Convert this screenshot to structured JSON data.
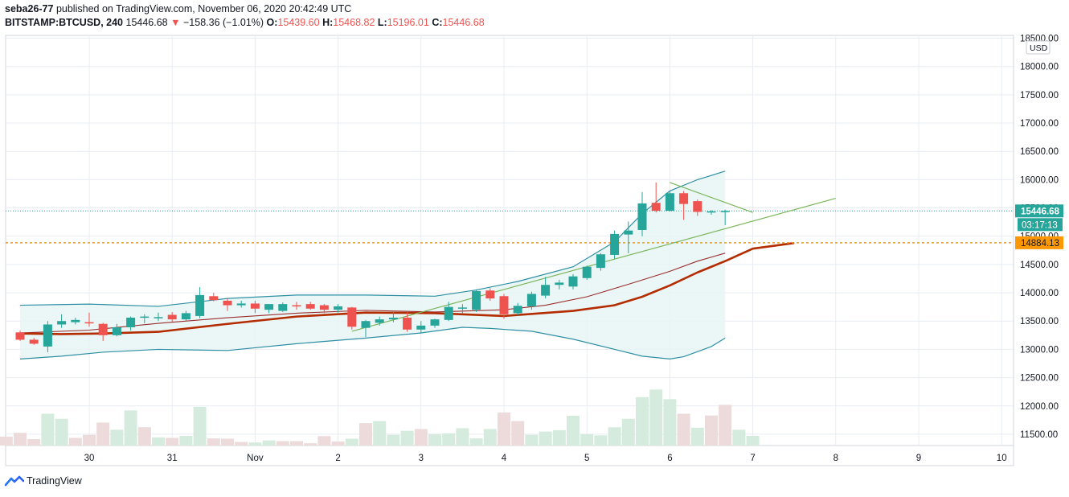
{
  "header": {
    "author": "seba26-77",
    "published": "published on TradingView.com, November 06, 2020 20:42:49 UTC",
    "symbol": "BITSTAMP:BTCUSD, 240",
    "last": "15446.68",
    "change_arrow": "▼",
    "change": "−158.36 (−1.01%)",
    "open_label": "O:",
    "open": "15439.60",
    "high_label": "H:",
    "high": "15468.82",
    "low_label": "L:",
    "low": "15196.01",
    "close_label": "C:",
    "close": "15446.68"
  },
  "footer": {
    "brand": "TradingView",
    "logo_icon": "tradingview-logo-icon"
  },
  "chart_data": {
    "type": "candlestick",
    "currency": "USD",
    "ylim": [
      11300,
      18550
    ],
    "yticks": [
      18500,
      18000,
      17500,
      17000,
      16500,
      16000,
      15500,
      15000,
      14500,
      14000,
      13500,
      13000,
      12500,
      12000,
      11500
    ],
    "ytick_labels": [
      "18500.00",
      "18000.00",
      "17500.00",
      "17000.00",
      "16500.00",
      "16000.00",
      "15500.00",
      "15000.00",
      "14500.00",
      "14000.00",
      "13500.00",
      "13000.00",
      "12500.00",
      "12000.00",
      "11500.00"
    ],
    "xticks": [
      {
        "label": "30",
        "t": 5
      },
      {
        "label": "31",
        "t": 11
      },
      {
        "label": "Nov",
        "t": 17
      },
      {
        "label": "2",
        "t": 23
      },
      {
        "label": "3",
        "t": 29
      },
      {
        "label": "4",
        "t": 35
      },
      {
        "label": "5",
        "t": 41
      },
      {
        "label": "6",
        "t": 47
      },
      {
        "label": "7",
        "t": 53
      },
      {
        "label": "8",
        "t": 59
      },
      {
        "label": "9",
        "t": 65
      },
      {
        "label": "10",
        "t": 71
      }
    ],
    "candles": [
      {
        "t": 0,
        "o": 13300,
        "h": 13330,
        "l": 13150,
        "c": 13170
      },
      {
        "t": 1,
        "o": 13170,
        "h": 13200,
        "l": 13080,
        "c": 13100
      },
      {
        "t": 2,
        "o": 13050,
        "h": 13500,
        "l": 12950,
        "c": 13440
      },
      {
        "t": 3,
        "o": 13440,
        "h": 13620,
        "l": 13380,
        "c": 13500
      },
      {
        "t": 4,
        "o": 13480,
        "h": 13560,
        "l": 13440,
        "c": 13520
      },
      {
        "t": 5,
        "o": 13480,
        "h": 13650,
        "l": 13400,
        "c": 13460
      },
      {
        "t": 6,
        "o": 13450,
        "h": 13470,
        "l": 13150,
        "c": 13250
      },
      {
        "t": 7,
        "o": 13250,
        "h": 13450,
        "l": 13230,
        "c": 13390
      },
      {
        "t": 8,
        "o": 13390,
        "h": 13580,
        "l": 13330,
        "c": 13560
      },
      {
        "t": 9,
        "o": 13560,
        "h": 13620,
        "l": 13460,
        "c": 13580
      },
      {
        "t": 10,
        "o": 13560,
        "h": 13650,
        "l": 13500,
        "c": 13570
      },
      {
        "t": 11,
        "o": 13610,
        "h": 13660,
        "l": 13490,
        "c": 13530
      },
      {
        "t": 12,
        "o": 13530,
        "h": 13680,
        "l": 13500,
        "c": 13640
      },
      {
        "t": 13,
        "o": 13590,
        "h": 14100,
        "l": 13550,
        "c": 13960
      },
      {
        "t": 14,
        "o": 13940,
        "h": 14000,
        "l": 13850,
        "c": 13870
      },
      {
        "t": 15,
        "o": 13860,
        "h": 13900,
        "l": 13680,
        "c": 13780
      },
      {
        "t": 16,
        "o": 13780,
        "h": 13860,
        "l": 13740,
        "c": 13810
      },
      {
        "t": 17,
        "o": 13810,
        "h": 13860,
        "l": 13640,
        "c": 13720
      },
      {
        "t": 18,
        "o": 13700,
        "h": 13790,
        "l": 13640,
        "c": 13800
      },
      {
        "t": 19,
        "o": 13680,
        "h": 13830,
        "l": 13660,
        "c": 13800
      },
      {
        "t": 20,
        "o": 13780,
        "h": 13840,
        "l": 13700,
        "c": 13760
      },
      {
        "t": 21,
        "o": 13800,
        "h": 13840,
        "l": 13700,
        "c": 13720
      },
      {
        "t": 22,
        "o": 13780,
        "h": 13800,
        "l": 13640,
        "c": 13700
      },
      {
        "t": 23,
        "o": 13700,
        "h": 13800,
        "l": 13650,
        "c": 13760
      },
      {
        "t": 24,
        "o": 13740,
        "h": 13750,
        "l": 13350,
        "c": 13400
      },
      {
        "t": 25,
        "o": 13380,
        "h": 13520,
        "l": 13220,
        "c": 13500
      },
      {
        "t": 26,
        "o": 13470,
        "h": 13580,
        "l": 13420,
        "c": 13530
      },
      {
        "t": 27,
        "o": 13530,
        "h": 13680,
        "l": 13480,
        "c": 13560
      },
      {
        "t": 28,
        "o": 13560,
        "h": 13660,
        "l": 13310,
        "c": 13350
      },
      {
        "t": 29,
        "o": 13350,
        "h": 13500,
        "l": 13280,
        "c": 13420
      },
      {
        "t": 30,
        "o": 13420,
        "h": 13540,
        "l": 13380,
        "c": 13530
      },
      {
        "t": 31,
        "o": 13520,
        "h": 13840,
        "l": 13500,
        "c": 13750
      },
      {
        "t": 32,
        "o": 13720,
        "h": 13800,
        "l": 13640,
        "c": 13740
      },
      {
        "t": 33,
        "o": 13700,
        "h": 14060,
        "l": 13660,
        "c": 14030
      },
      {
        "t": 34,
        "o": 14040,
        "h": 14080,
        "l": 13860,
        "c": 13900
      },
      {
        "t": 35,
        "o": 13940,
        "h": 13980,
        "l": 13540,
        "c": 13620
      },
      {
        "t": 36,
        "o": 13640,
        "h": 13820,
        "l": 13600,
        "c": 13770
      },
      {
        "t": 37,
        "o": 13760,
        "h": 14020,
        "l": 13700,
        "c": 13980
      },
      {
        "t": 38,
        "o": 13950,
        "h": 14280,
        "l": 13900,
        "c": 14140
      },
      {
        "t": 39,
        "o": 14140,
        "h": 14230,
        "l": 14060,
        "c": 14180
      },
      {
        "t": 40,
        "o": 14110,
        "h": 14330,
        "l": 14060,
        "c": 14290
      },
      {
        "t": 41,
        "o": 14260,
        "h": 14480,
        "l": 14230,
        "c": 14460
      },
      {
        "t": 42,
        "o": 14440,
        "h": 14700,
        "l": 14390,
        "c": 14680
      },
      {
        "t": 43,
        "o": 14670,
        "h": 15100,
        "l": 14600,
        "c": 15040
      },
      {
        "t": 44,
        "o": 15030,
        "h": 15260,
        "l": 14700,
        "c": 15100
      },
      {
        "t": 45,
        "o": 15110,
        "h": 15780,
        "l": 15000,
        "c": 15580
      },
      {
        "t": 46,
        "o": 15590,
        "h": 15950,
        "l": 15420,
        "c": 15450
      },
      {
        "t": 47,
        "o": 15450,
        "h": 15800,
        "l": 15440,
        "c": 15760
      },
      {
        "t": 48,
        "o": 15760,
        "h": 15800,
        "l": 15290,
        "c": 15570
      },
      {
        "t": 49,
        "o": 15620,
        "h": 15650,
        "l": 15360,
        "c": 15430
      },
      {
        "t": 50,
        "o": 15430,
        "h": 15460,
        "l": 15380,
        "c": 15440
      },
      {
        "t": 51,
        "o": 15439.6,
        "h": 15468.82,
        "l": 15196.01,
        "c": 15446.68
      }
    ],
    "volume": [
      {
        "t": -1,
        "v": 0.35,
        "up": false
      },
      {
        "t": 0,
        "v": 0.5,
        "up": false
      },
      {
        "t": 1,
        "v": 0.25,
        "up": false
      },
      {
        "t": 2,
        "v": 1.25,
        "up": true
      },
      {
        "t": 3,
        "v": 1.05,
        "up": true
      },
      {
        "t": 4,
        "v": 0.3,
        "up": false
      },
      {
        "t": 5,
        "v": 0.42,
        "up": false
      },
      {
        "t": 6,
        "v": 0.9,
        "up": false
      },
      {
        "t": 7,
        "v": 0.62,
        "up": true
      },
      {
        "t": 8,
        "v": 1.38,
        "up": true
      },
      {
        "t": 9,
        "v": 0.72,
        "up": false
      },
      {
        "t": 10,
        "v": 0.32,
        "up": true
      },
      {
        "t": 11,
        "v": 0.3,
        "up": false
      },
      {
        "t": 12,
        "v": 0.38,
        "up": true
      },
      {
        "t": 13,
        "v": 1.52,
        "up": true
      },
      {
        "t": 14,
        "v": 0.28,
        "up": false
      },
      {
        "t": 15,
        "v": 0.27,
        "up": false
      },
      {
        "t": 16,
        "v": 0.14,
        "up": false
      },
      {
        "t": 17,
        "v": 0.12,
        "up": true
      },
      {
        "t": 18,
        "v": 0.2,
        "up": true
      },
      {
        "t": 19,
        "v": 0.17,
        "up": false
      },
      {
        "t": 20,
        "v": 0.17,
        "up": false
      },
      {
        "t": 21,
        "v": 0.09,
        "up": false
      },
      {
        "t": 22,
        "v": 0.37,
        "up": false
      },
      {
        "t": 23,
        "v": 0.16,
        "up": false
      },
      {
        "t": 24,
        "v": 0.27,
        "up": true
      },
      {
        "t": 25,
        "v": 0.88,
        "up": false
      },
      {
        "t": 26,
        "v": 0.96,
        "up": true
      },
      {
        "t": 27,
        "v": 0.42,
        "up": true
      },
      {
        "t": 28,
        "v": 0.58,
        "up": true
      },
      {
        "t": 29,
        "v": 0.65,
        "up": false
      },
      {
        "t": 30,
        "v": 0.45,
        "up": true
      },
      {
        "t": 31,
        "v": 0.48,
        "up": true
      },
      {
        "t": 32,
        "v": 0.68,
        "up": true
      },
      {
        "t": 33,
        "v": 0.28,
        "up": true
      },
      {
        "t": 34,
        "v": 0.65,
        "up": true
      },
      {
        "t": 35,
        "v": 1.3,
        "up": false
      },
      {
        "t": 36,
        "v": 0.96,
        "up": false
      },
      {
        "t": 37,
        "v": 0.42,
        "up": true
      },
      {
        "t": 38,
        "v": 0.55,
        "up": true
      },
      {
        "t": 39,
        "v": 0.6,
        "up": true
      },
      {
        "t": 40,
        "v": 1.17,
        "up": true
      },
      {
        "t": 41,
        "v": 0.45,
        "up": true
      },
      {
        "t": 42,
        "v": 0.4,
        "up": true
      },
      {
        "t": 43,
        "v": 0.72,
        "up": true
      },
      {
        "t": 44,
        "v": 1.05,
        "up": true
      },
      {
        "t": 45,
        "v": 1.9,
        "up": true
      },
      {
        "t": 46,
        "v": 2.2,
        "up": true
      },
      {
        "t": 47,
        "v": 1.82,
        "up": true
      },
      {
        "t": 48,
        "v": 1.25,
        "up": false
      },
      {
        "t": 49,
        "v": 0.7,
        "up": true
      },
      {
        "t": 50,
        "v": 1.18,
        "up": false
      },
      {
        "t": 51,
        "v": 1.6,
        "up": false
      },
      {
        "t": 52,
        "v": 0.62,
        "up": true
      },
      {
        "t": 53,
        "v": 0.38,
        "up": true
      }
    ],
    "volume_scale": {
      "unit_price": 450
    },
    "bollinger_upper": [
      [
        0,
        13780
      ],
      [
        5,
        13800
      ],
      [
        10,
        13760
      ],
      [
        15,
        13900
      ],
      [
        20,
        13960
      ],
      [
        25,
        13960
      ],
      [
        30,
        13940
      ],
      [
        33,
        14050
      ],
      [
        36,
        14200
      ],
      [
        40,
        14460
      ],
      [
        43,
        14900
      ],
      [
        45,
        15400
      ],
      [
        47,
        15800
      ],
      [
        49,
        16000
      ],
      [
        51,
        16150
      ]
    ],
    "bollinger_lower": [
      [
        0,
        12830
      ],
      [
        3,
        12880
      ],
      [
        6,
        12950
      ],
      [
        10,
        13000
      ],
      [
        15,
        12980
      ],
      [
        20,
        13100
      ],
      [
        25,
        13200
      ],
      [
        29,
        13290
      ],
      [
        32,
        13390
      ],
      [
        34,
        13370
      ],
      [
        37,
        13320
      ],
      [
        40,
        13180
      ],
      [
        43,
        13000
      ],
      [
        45,
        12880
      ],
      [
        47,
        12830
      ],
      [
        48,
        12870
      ],
      [
        50,
        13050
      ],
      [
        51,
        13200
      ]
    ],
    "basis_thin": [
      [
        0,
        13290
      ],
      [
        5,
        13340
      ],
      [
        10,
        13460
      ],
      [
        15,
        13560
      ],
      [
        20,
        13640
      ],
      [
        25,
        13690
      ],
      [
        30,
        13660
      ],
      [
        35,
        13700
      ],
      [
        38,
        13780
      ],
      [
        41,
        13930
      ],
      [
        44,
        14150
      ],
      [
        47,
        14380
      ],
      [
        49,
        14560
      ],
      [
        51,
        14700
      ]
    ],
    "ma_thick": [
      [
        0,
        13280
      ],
      [
        3,
        13270
      ],
      [
        6,
        13280
      ],
      [
        10,
        13310
      ],
      [
        15,
        13450
      ],
      [
        20,
        13580
      ],
      [
        25,
        13650
      ],
      [
        30,
        13640
      ],
      [
        35,
        13590
      ],
      [
        40,
        13680
      ],
      [
        43,
        13780
      ],
      [
        45,
        13930
      ],
      [
        47,
        14130
      ],
      [
        49,
        14360
      ],
      [
        51,
        14560
      ],
      [
        53,
        14780
      ],
      [
        56,
        14880
      ]
    ],
    "trendline_up": [
      [
        24,
        13320
      ],
      [
        59,
        15670
      ]
    ],
    "trendline_down": [
      [
        47,
        15950
      ],
      [
        53,
        15420
      ]
    ],
    "hline_last": 15446.68,
    "hline_level": 14884.13,
    "price_labels": {
      "last": "15446.68",
      "countdown": "03:17:13",
      "level": "14884.13"
    }
  },
  "colors": {
    "up": "#26a69a",
    "down": "#ef5350",
    "up_volume": "#d5ebdd",
    "down_volume": "#eddada",
    "band": "#2e8fa3",
    "band_fill": "#e8f4f4",
    "basis": "#9a2e2e",
    "ma": "#b32d00",
    "trend": "#7cb65c",
    "level": "#ff9800",
    "grid": "#e8ecf2",
    "last_bg": "#26a69a"
  }
}
